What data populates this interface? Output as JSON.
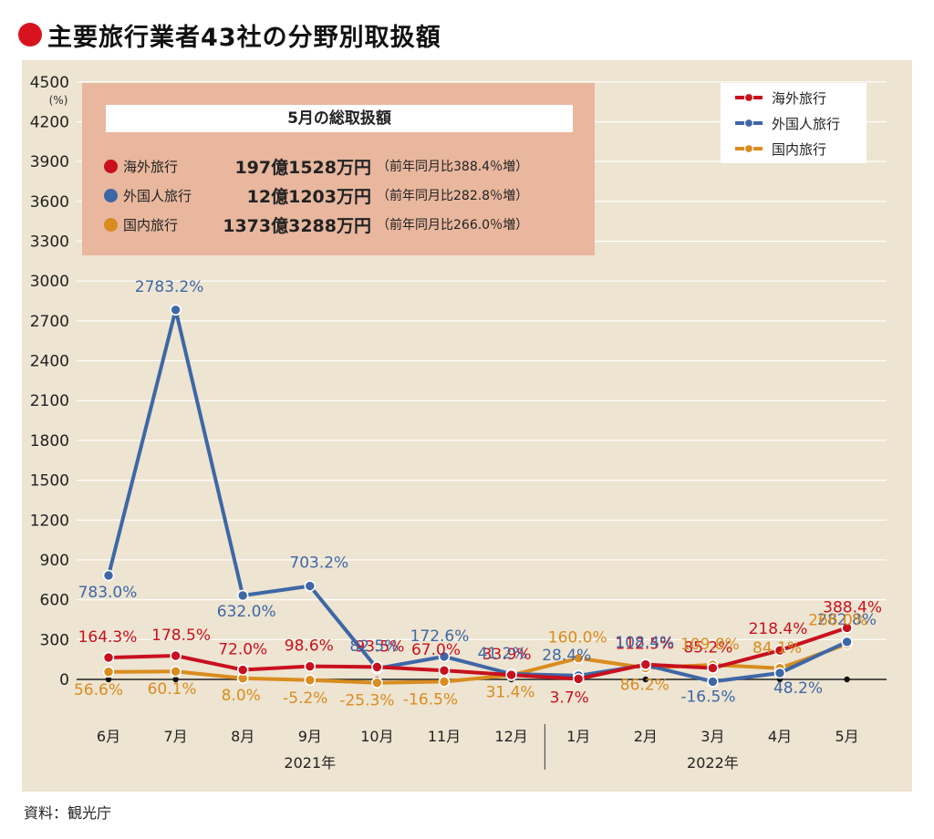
{
  "title": "主要旅行業者43社の分野別取扱額",
  "source": "資料：観光庁",
  "summary": {
    "heading": "5月の総取扱額",
    "rows": [
      {
        "label": "海外旅行",
        "value": "197億1528万円",
        "note": "（前年同月比388.4％増）",
        "color": "#c8101e"
      },
      {
        "label": "外国人旅行",
        "value": "12億1203万円",
        "note": "（前年同月比282.8％増）",
        "color": "#3e67a6"
      },
      {
        "label": "国内旅行",
        "value": "1373億3288万円",
        "note": "（前年同月比266.0％増）",
        "color": "#d98c1f"
      }
    ]
  },
  "legend": [
    {
      "label": "海外旅行",
      "color": "#c8101e"
    },
    {
      "label": "外国人旅行",
      "color": "#3e67a6"
    },
    {
      "label": "国内旅行",
      "color": "#d98c1f"
    }
  ],
  "chart_data": {
    "type": "line",
    "ylabel": "(%)",
    "ylim": [
      -300,
      4500
    ],
    "yticks": [
      "0",
      "300",
      "600",
      "900",
      "1200",
      "1500",
      "1800",
      "2100",
      "2400",
      "2700",
      "3000",
      "3300",
      "3600",
      "3900",
      "4200",
      "4500"
    ],
    "categories": [
      "6月",
      "7月",
      "8月",
      "9月",
      "10月",
      "11月",
      "12月",
      "1月",
      "2月",
      "3月",
      "4月",
      "5月"
    ],
    "year_labels": [
      "2021年",
      "2022年"
    ],
    "grid": true,
    "legend_position": "top-right",
    "series": [
      {
        "name": "海外旅行",
        "color": "#c8101e",
        "labelColor": "#c8101e",
        "values": [
          164.3,
          178.5,
          72.0,
          98.6,
          93.5,
          67.0,
          33.9,
          3.7,
          112.5,
          85.2,
          218.4,
          388.4
        ],
        "labels": [
          "164.3%",
          "178.5%",
          "72.0%",
          "98.6%",
          "93.5%",
          "67.0%",
          "33.9%",
          "3.7%",
          "112.5%",
          "85.2%",
          "218.4%",
          "388.4%"
        ]
      },
      {
        "name": "外国人旅行",
        "color": "#3e67a6",
        "labelColor": "#3e67a6",
        "values": [
          783.0,
          2783.2,
          632.0,
          703.2,
          82.5,
          172.6,
          41.2,
          28.4,
          108.4,
          -16.5,
          48.2,
          282.8
        ],
        "labels": [
          "783.0%",
          "2783.2%",
          "632.0%",
          "703.2%",
          "82.5%",
          "172.6%",
          "41.2%",
          "28.4%",
          "108.4%",
          "-16.5%",
          "48.2%",
          "282.8%"
        ]
      },
      {
        "name": "国内旅行",
        "color": "#d98c1f",
        "labelColor": "#d98c1f",
        "values": [
          56.6,
          60.1,
          8.0,
          -5.2,
          -25.3,
          -16.5,
          31.4,
          160.0,
          86.2,
          109.8,
          84.1,
          266.0
        ],
        "labels": [
          "56.6%",
          "60.1%",
          "8.0%",
          "-5.2%",
          "-25.3%",
          "-16.5%",
          "31.4%",
          "160.0%",
          "86.2%",
          "109.8%",
          "84.1%",
          "266.0%"
        ]
      }
    ]
  }
}
